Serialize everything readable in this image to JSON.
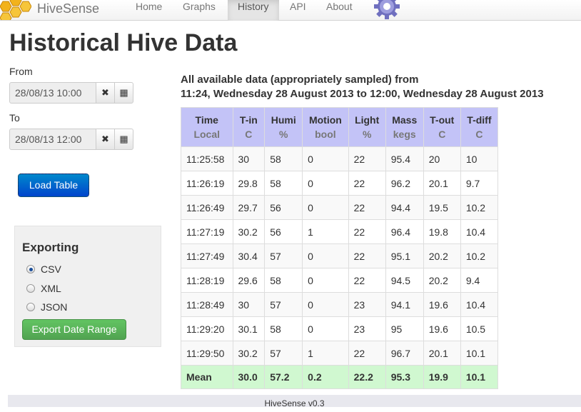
{
  "navbar": {
    "brand": "HiveSense",
    "items": [
      {
        "label": "Home",
        "active": false
      },
      {
        "label": "Graphs",
        "active": false
      },
      {
        "label": "History",
        "active": true
      },
      {
        "label": "API",
        "active": false
      },
      {
        "label": "About",
        "active": false
      }
    ]
  },
  "page_title": "Historical Hive Data",
  "range": {
    "from_label": "From",
    "from_value": "28/08/13 10:00",
    "to_label": "To",
    "to_value": "28/08/13 12:00",
    "clear_icon": "✖",
    "calendar_icon": "▦"
  },
  "load_button": "Load Table",
  "export": {
    "heading": "Exporting",
    "options": [
      {
        "label": "CSV",
        "checked": true
      },
      {
        "label": "XML",
        "checked": false
      },
      {
        "label": "JSON",
        "checked": false
      }
    ],
    "button": "Export Date Range"
  },
  "summary": {
    "line1": "All available data (appropriately sampled) from",
    "line2": "11:24, Wednesday 28 August 2013 to 12:00, Wednesday 28 August 2013"
  },
  "table": {
    "headers": [
      {
        "name": "Time",
        "unit": "Local"
      },
      {
        "name": "T-in",
        "unit": "C"
      },
      {
        "name": "Humi",
        "unit": "%"
      },
      {
        "name": "Motion",
        "unit": "bool"
      },
      {
        "name": "Light",
        "unit": "%"
      },
      {
        "name": "Mass",
        "unit": "kegs"
      },
      {
        "name": "T-out",
        "unit": "C"
      },
      {
        "name": "T-diff",
        "unit": "C"
      }
    ],
    "rows": [
      [
        "11:25:58",
        "30",
        "58",
        "0",
        "22",
        "95.4",
        "20",
        "10"
      ],
      [
        "11:26:19",
        "29.8",
        "58",
        "0",
        "22",
        "96.2",
        "20.1",
        "9.7"
      ],
      [
        "11:26:49",
        "29.7",
        "56",
        "0",
        "22",
        "94.4",
        "19.5",
        "10.2"
      ],
      [
        "11:27:19",
        "30.2",
        "56",
        "1",
        "22",
        "96.4",
        "19.8",
        "10.4"
      ],
      [
        "11:27:49",
        "30.4",
        "57",
        "0",
        "22",
        "95.1",
        "20.2",
        "10.2"
      ],
      [
        "11:28:19",
        "29.6",
        "58",
        "0",
        "22",
        "94.5",
        "20.2",
        "9.4"
      ],
      [
        "11:28:49",
        "30",
        "57",
        "0",
        "23",
        "94.1",
        "19.6",
        "10.4"
      ],
      [
        "11:29:20",
        "30.1",
        "58",
        "0",
        "23",
        "95",
        "19.6",
        "10.5"
      ],
      [
        "11:29:50",
        "30.2",
        "57",
        "1",
        "22",
        "96.7",
        "20.1",
        "10.1"
      ]
    ],
    "mean": [
      "Mean",
      "30.0",
      "57.2",
      "0.2",
      "22.2",
      "95.3",
      "19.9",
      "10.1"
    ]
  },
  "footer": "HiveSense v0.3",
  "colors": {
    "header_bg": "#c3c3f7",
    "mean_bg": "#d0f8d0",
    "primary": "#0055cc",
    "success": "#5bb75b"
  },
  "icons": {
    "logo": "honeycomb-logo-icon",
    "settings": "gear-icon"
  }
}
